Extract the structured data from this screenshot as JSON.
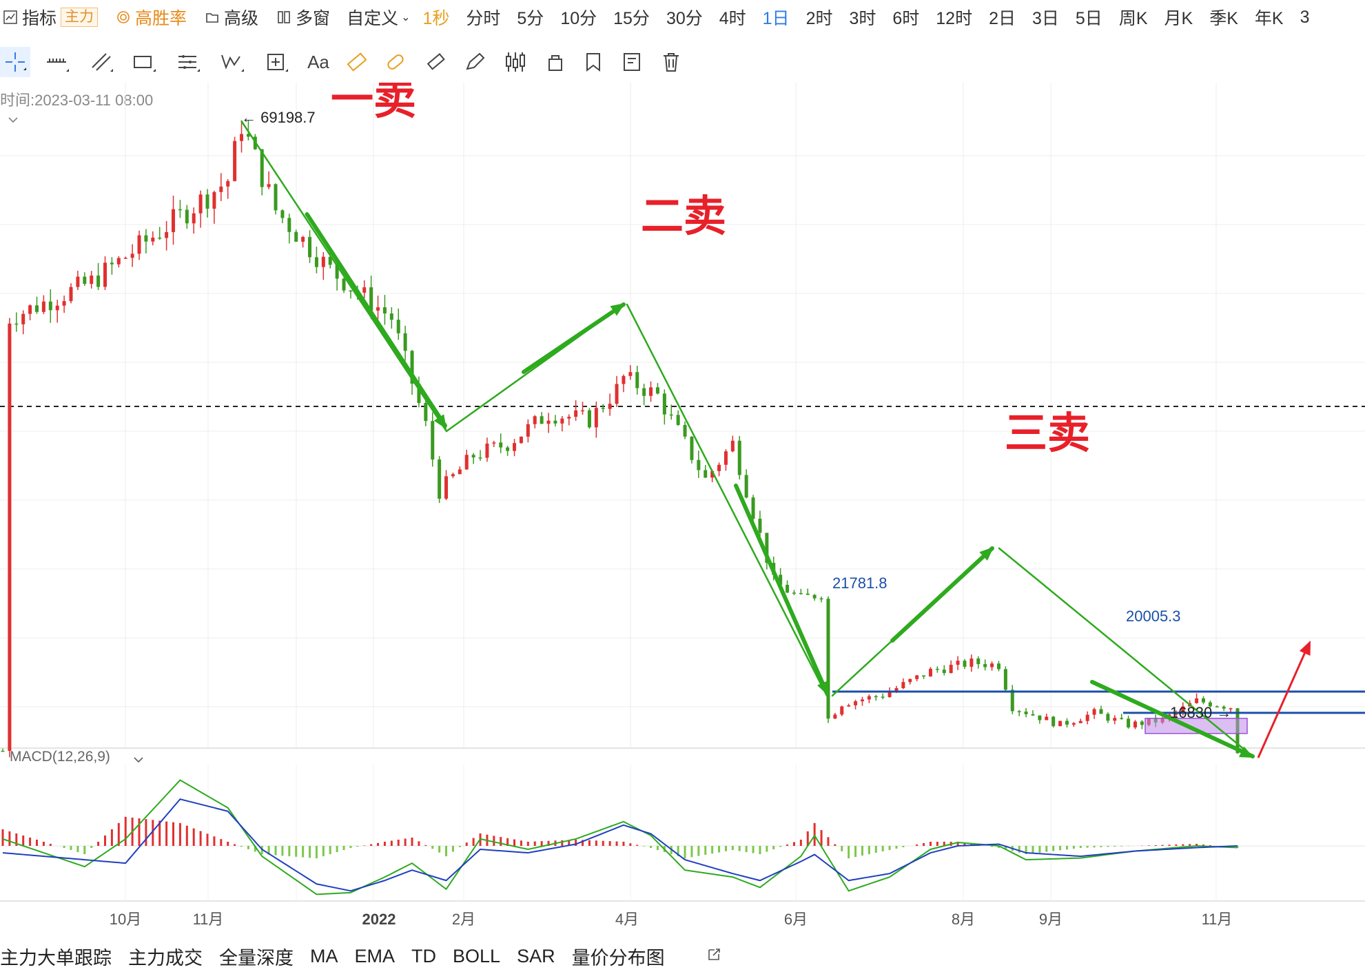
{
  "toolbar": {
    "indicator_label": "指标",
    "indicator_badge": "主力",
    "winrate_label": "高胜率",
    "advanced_label": "高级",
    "multiwin_label": "多窗",
    "custom_label": "自定义",
    "periods": [
      "1秒",
      "分时",
      "5分",
      "10分",
      "15分",
      "30分",
      "4时",
      "1日",
      "2时",
      "3时",
      "6时",
      "12时",
      "2日",
      "3日",
      "5日",
      "周K",
      "月K",
      "季K",
      "年K",
      "3"
    ],
    "active_period": "1日",
    "dim_period": "1秒"
  },
  "info": {
    "time_text": "时间:2023-03-11 08:00"
  },
  "indicator": {
    "label": "MACD(12,26,9)"
  },
  "annotations": {
    "sell1": "一卖",
    "sell2": "二卖",
    "sell3": "三卖",
    "high_price": "69198.7",
    "level1": "21781.8",
    "level2": "20005.3",
    "low_price": "16830"
  },
  "bottom_tabs": [
    "主力大单跟踪",
    "主力成交",
    "全量深度",
    "MA",
    "EMA",
    "TD",
    "BOLL",
    "SAR",
    "量价分布图"
  ],
  "colors": {
    "up": "#e03030",
    "down": "#3a9a20",
    "trend_line": "#2eaa1e",
    "level_line": "#1a4fa8",
    "zone": "#c08ae8",
    "annotation": "#e8202a",
    "active_period": "#2f7be6",
    "macd_dif": "#2eaa1e",
    "macd_dea": "#1f3fbf"
  },
  "chart_data": {
    "type": "candlestick",
    "x_ticks": [
      "10月",
      "11月",
      "2022",
      "2月",
      "4月",
      "6月",
      "8月",
      "9月",
      "11月"
    ],
    "price_reference": {
      "high": 69198.7,
      "low": 16830,
      "levels": [
        21781.8,
        20005.3
      ]
    },
    "anchors": [
      [
        1,
        53000
      ],
      [
        13,
        56000
      ],
      [
        26,
        61500
      ],
      [
        33,
        64500
      ],
      [
        35,
        69198.7
      ],
      [
        40,
        62000
      ],
      [
        48,
        57000
      ],
      [
        57,
        53000
      ],
      [
        62,
        44000
      ],
      [
        64,
        38500
      ],
      [
        69,
        41500
      ],
      [
        74,
        42500
      ],
      [
        80,
        45000
      ],
      [
        86,
        44500
      ],
      [
        90,
        47000
      ],
      [
        91,
        48000
      ],
      [
        96,
        46500
      ],
      [
        103,
        39500
      ],
      [
        107,
        42500
      ],
      [
        113,
        31000
      ],
      [
        117,
        29500
      ],
      [
        120,
        30000
      ],
      [
        121,
        19500
      ],
      [
        123,
        20800
      ],
      [
        129,
        21500
      ],
      [
        136,
        23500
      ],
      [
        142,
        24200
      ],
      [
        146,
        24000
      ],
      [
        148,
        20500
      ],
      [
        155,
        19000
      ],
      [
        160,
        20000
      ],
      [
        165,
        19000
      ],
      [
        170,
        19400
      ],
      [
        175,
        21000
      ],
      [
        180,
        20500
      ],
      [
        181,
        16830
      ]
    ],
    "macd": {
      "dif": [
        [
          0,
          400
        ],
        [
          12,
          -1200
        ],
        [
          18,
          400
        ],
        [
          26,
          3800
        ],
        [
          33,
          2200
        ],
        [
          38,
          -600
        ],
        [
          46,
          -2800
        ],
        [
          51,
          -2700
        ],
        [
          56,
          -1800
        ],
        [
          60,
          -1000
        ],
        [
          65,
          -2500
        ],
        [
          70,
          400
        ],
        [
          77,
          -200
        ],
        [
          84,
          400
        ],
        [
          91,
          1400
        ],
        [
          95,
          600
        ],
        [
          100,
          -1400
        ],
        [
          107,
          -1800
        ],
        [
          111,
          -2400
        ],
        [
          117,
          -600
        ],
        [
          119,
          600
        ],
        [
          124,
          -2600
        ],
        [
          130,
          -1800
        ],
        [
          136,
          -200
        ],
        [
          140,
          200
        ],
        [
          146,
          0
        ],
        [
          150,
          -800
        ],
        [
          158,
          -700
        ],
        [
          166,
          -300
        ],
        [
          175,
          0
        ],
        [
          181,
          -100
        ]
      ],
      "dea": [
        [
          0,
          -400
        ],
        [
          12,
          -800
        ],
        [
          18,
          -1000
        ],
        [
          26,
          2700
        ],
        [
          33,
          2000
        ],
        [
          38,
          -200
        ],
        [
          46,
          -2200
        ],
        [
          51,
          -2600
        ],
        [
          56,
          -2000
        ],
        [
          60,
          -1400
        ],
        [
          65,
          -2000
        ],
        [
          70,
          -200
        ],
        [
          77,
          -400
        ],
        [
          84,
          100
        ],
        [
          91,
          1200
        ],
        [
          95,
          700
        ],
        [
          100,
          -800
        ],
        [
          107,
          -1600
        ],
        [
          111,
          -2000
        ],
        [
          117,
          -900
        ],
        [
          119,
          -500
        ],
        [
          124,
          -2000
        ],
        [
          130,
          -1600
        ],
        [
          136,
          -400
        ],
        [
          140,
          0
        ],
        [
          146,
          100
        ],
        [
          150,
          -400
        ],
        [
          158,
          -600
        ],
        [
          166,
          -300
        ],
        [
          175,
          -100
        ],
        [
          181,
          0
        ]
      ]
    }
  }
}
